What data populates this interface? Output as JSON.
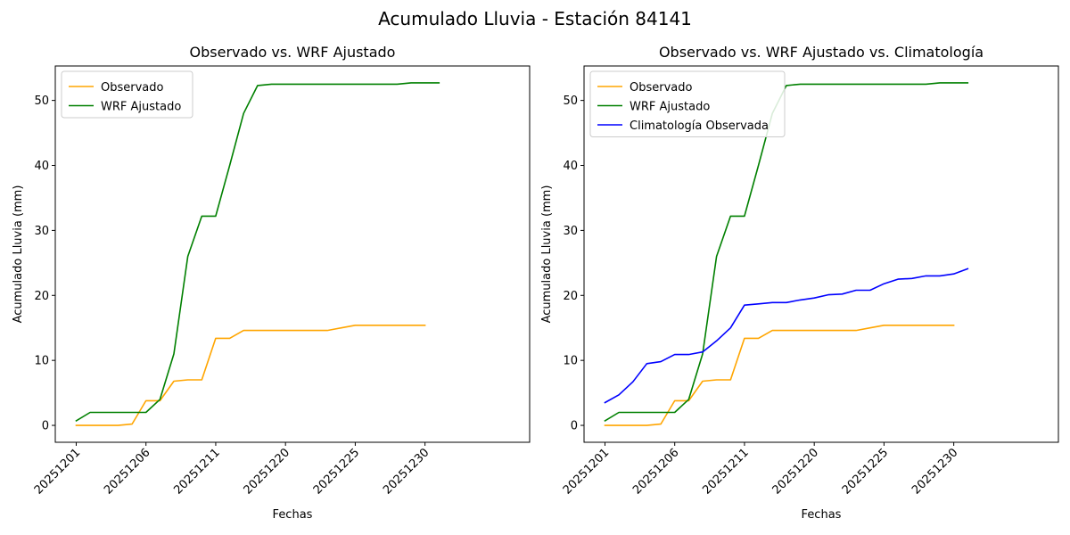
{
  "figure": {
    "suptitle": "Acumulado Lluvia - Estación 84141"
  },
  "colors": {
    "observado": "#ffa500",
    "wrf": "#008000",
    "climatologia": "#0000ff"
  },
  "chart_data": [
    {
      "type": "line",
      "title": "Observado vs. WRF Ajustado",
      "xlabel": "Fechas",
      "ylabel": "Acumulado Lluvia (mm)",
      "xlim": [
        -1.5,
        32.5
      ],
      "ylim": [
        -2.6,
        55.3
      ],
      "xticks": [
        {
          "pos": 0,
          "label": "20251201"
        },
        {
          "pos": 5,
          "label": "20251206"
        },
        {
          "pos": 10,
          "label": "20251211"
        },
        {
          "pos": 15,
          "label": "20251220"
        },
        {
          "pos": 20,
          "label": "20251225"
        },
        {
          "pos": 25,
          "label": "20251230"
        }
      ],
      "yticks": [
        0,
        10,
        20,
        30,
        40,
        50
      ],
      "legend_position": "top-left",
      "series": [
        {
          "name": "Observado",
          "color": "#ffa500",
          "x": [
            0,
            1,
            2,
            3,
            4,
            5,
            6,
            7,
            8,
            9,
            10,
            11,
            12,
            13,
            14,
            15,
            16,
            17,
            18,
            19,
            20,
            21,
            22,
            23,
            24,
            25
          ],
          "y": [
            0,
            0,
            0,
            0,
            0.2,
            3.8,
            3.8,
            6.8,
            7.0,
            7.0,
            13.4,
            13.4,
            14.6,
            14.6,
            14.6,
            14.6,
            14.6,
            14.6,
            14.6,
            15.0,
            15.4,
            15.4,
            15.4,
            15.4,
            15.4,
            15.4
          ]
        },
        {
          "name": "WRF Ajustado",
          "color": "#008000",
          "x": [
            0,
            1,
            2,
            3,
            4,
            5,
            6,
            7,
            8,
            9,
            10,
            11,
            12,
            13,
            14,
            15,
            16,
            17,
            18,
            19,
            20,
            21,
            22,
            23,
            24,
            25,
            26
          ],
          "y": [
            0.7,
            2.0,
            2.0,
            2.0,
            2.0,
            2.0,
            4.0,
            11.0,
            26.0,
            32.2,
            32.2,
            40.0,
            48.0,
            52.3,
            52.5,
            52.5,
            52.5,
            52.5,
            52.5,
            52.5,
            52.5,
            52.5,
            52.5,
            52.5,
            52.7,
            52.7,
            52.7
          ]
        }
      ]
    },
    {
      "type": "line",
      "title": "Observado vs. WRF Ajustado vs. Climatología",
      "xlabel": "Fechas",
      "ylabel": "Acumulado Lluvia (mm)",
      "xlim": [
        -1.5,
        32.5
      ],
      "ylim": [
        -2.6,
        55.3
      ],
      "xticks": [
        {
          "pos": 0,
          "label": "20251201"
        },
        {
          "pos": 5,
          "label": "20251206"
        },
        {
          "pos": 10,
          "label": "20251211"
        },
        {
          "pos": 15,
          "label": "20251220"
        },
        {
          "pos": 20,
          "label": "20251225"
        },
        {
          "pos": 25,
          "label": "20251230"
        }
      ],
      "yticks": [
        0,
        10,
        20,
        30,
        40,
        50
      ],
      "legend_position": "top-left",
      "series": [
        {
          "name": "Observado",
          "color": "#ffa500",
          "x": [
            0,
            1,
            2,
            3,
            4,
            5,
            6,
            7,
            8,
            9,
            10,
            11,
            12,
            13,
            14,
            15,
            16,
            17,
            18,
            19,
            20,
            21,
            22,
            23,
            24,
            25
          ],
          "y": [
            0,
            0,
            0,
            0,
            0.2,
            3.8,
            3.8,
            6.8,
            7.0,
            7.0,
            13.4,
            13.4,
            14.6,
            14.6,
            14.6,
            14.6,
            14.6,
            14.6,
            14.6,
            15.0,
            15.4,
            15.4,
            15.4,
            15.4,
            15.4,
            15.4
          ]
        },
        {
          "name": "WRF Ajustado",
          "color": "#008000",
          "x": [
            0,
            1,
            2,
            3,
            4,
            5,
            6,
            7,
            8,
            9,
            10,
            11,
            12,
            13,
            14,
            15,
            16,
            17,
            18,
            19,
            20,
            21,
            22,
            23,
            24,
            25,
            26
          ],
          "y": [
            0.7,
            2.0,
            2.0,
            2.0,
            2.0,
            2.0,
            4.0,
            11.0,
            26.0,
            32.2,
            32.2,
            40.0,
            48.0,
            52.3,
            52.5,
            52.5,
            52.5,
            52.5,
            52.5,
            52.5,
            52.5,
            52.5,
            52.5,
            52.5,
            52.7,
            52.7,
            52.7
          ]
        },
        {
          "name": "Climatología Observada",
          "color": "#0000ff",
          "x": [
            0,
            1,
            2,
            3,
            4,
            5,
            6,
            7,
            8,
            9,
            10,
            11,
            12,
            13,
            14,
            15,
            16,
            17,
            18,
            19,
            20,
            21,
            22,
            23,
            24,
            25,
            26
          ],
          "y": [
            3.5,
            4.7,
            6.7,
            9.5,
            9.8,
            10.9,
            10.9,
            11.3,
            13.0,
            15.0,
            18.5,
            18.7,
            18.9,
            18.9,
            19.3,
            19.6,
            20.1,
            20.2,
            20.8,
            20.8,
            21.8,
            22.5,
            22.6,
            23.0,
            23.0,
            23.3,
            24.1
          ]
        }
      ]
    }
  ]
}
